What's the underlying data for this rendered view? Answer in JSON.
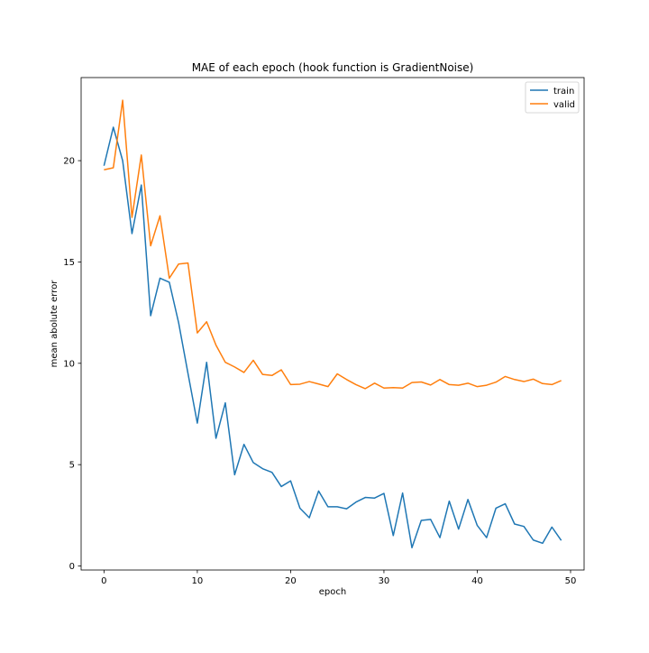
{
  "chart_data": {
    "type": "line",
    "title": "MAE of each epoch (hook function is GradientNoise)",
    "xlabel": "epoch",
    "ylabel": "mean abolute error",
    "xlim": [
      -2.45,
      51.45
    ],
    "ylim": [
      -0.2,
      24.1
    ],
    "xticks": [
      0,
      10,
      20,
      30,
      40,
      50
    ],
    "yticks": [
      0,
      5,
      10,
      15,
      20
    ],
    "grid": false,
    "legend_position": "top-right",
    "x": [
      0,
      1,
      2,
      3,
      4,
      5,
      6,
      7,
      8,
      9,
      10,
      11,
      12,
      13,
      14,
      15,
      16,
      17,
      18,
      19,
      20,
      21,
      22,
      23,
      24,
      25,
      26,
      27,
      28,
      29,
      30,
      31,
      32,
      33,
      34,
      35,
      36,
      37,
      38,
      39,
      40,
      41,
      42,
      43,
      44,
      45,
      46,
      47,
      48,
      49
    ],
    "series": [
      {
        "name": "train",
        "color": "#1f77b4",
        "values": [
          19.75,
          21.65,
          20.0,
          16.4,
          18.8,
          12.35,
          14.2,
          14.0,
          12.0,
          9.5,
          7.05,
          10.05,
          6.3,
          8.05,
          4.5,
          6.0,
          5.1,
          4.8,
          4.62,
          3.92,
          4.2,
          2.85,
          2.38,
          3.7,
          2.92,
          2.92,
          2.82,
          3.15,
          3.38,
          3.35,
          3.58,
          1.5,
          3.6,
          0.9,
          2.25,
          2.3,
          1.4,
          3.2,
          1.82,
          3.28,
          2.0,
          1.4,
          2.85,
          3.07,
          2.07,
          1.95,
          1.28,
          1.12,
          1.92,
          1.26
        ]
      },
      {
        "name": "valid",
        "color": "#ff7f0e",
        "values": [
          19.55,
          19.65,
          22.98,
          17.2,
          20.28,
          15.8,
          17.28,
          14.2,
          14.9,
          14.95,
          11.5,
          12.05,
          10.9,
          10.05,
          9.82,
          9.55,
          10.15,
          9.45,
          9.4,
          9.68,
          8.95,
          8.97,
          9.1,
          8.98,
          8.85,
          9.48,
          9.2,
          8.95,
          8.75,
          9.02,
          8.78,
          8.8,
          8.78,
          9.05,
          9.08,
          8.93,
          9.2,
          8.95,
          8.92,
          9.02,
          8.85,
          8.92,
          9.07,
          9.35,
          9.2,
          9.1,
          9.22,
          9.0,
          8.95,
          9.15
        ]
      }
    ]
  }
}
